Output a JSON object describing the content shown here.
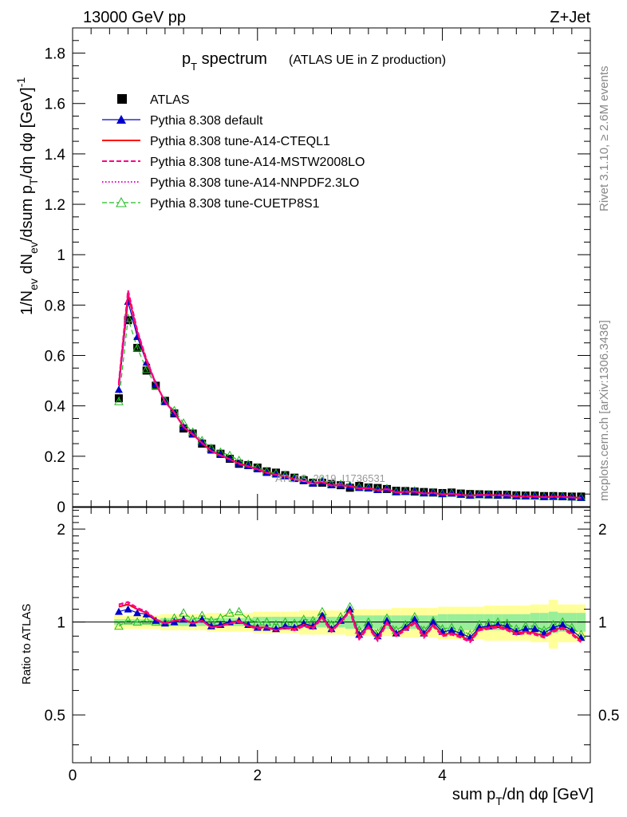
{
  "header": {
    "energy_label": "13000 GeV pp",
    "process_label": "Z+Jet"
  },
  "side_labels": {
    "rivet": "Rivet 3.1.10, ≥ 2.6M events",
    "mcplots": "mcplots.cern.ch [arXiv:1306.3436]"
  },
  "watermark": "ATLAS_2019_I1736531",
  "chart_data": {
    "type": "line",
    "title": "p_T spectrum",
    "title_main": "p",
    "title_sub": "T",
    "title_rest": " spectrum",
    "subtitle": "(ATLAS UE in Z production)",
    "xlabel": "sum p_T/dη dφ [GeV]",
    "ylabel": "1/N_ev dN_ev/dsum p_T/dη dφ [GeV]^-1",
    "ratio_ylabel": "Ratio to ATLAS",
    "xlim": [
      0,
      5.6
    ],
    "ylim": [
      0,
      1.9
    ],
    "ratio_ylim": [
      0.35,
      2.35
    ],
    "x_ticks": [
      "0",
      "2",
      "4"
    ],
    "y_ticks": [
      "0",
      "0.2",
      "0.4",
      "0.6",
      "0.8",
      "1",
      "1.2",
      "1.4",
      "1.6",
      "1.8"
    ],
    "ratio_ticks": [
      "0.5",
      "1",
      "2"
    ],
    "legend": [
      {
        "name": "ATLAS",
        "color": "#000000",
        "style": "data"
      },
      {
        "name": "Pythia 8.308 default",
        "color": "#0000cc",
        "style": "solid-triangle"
      },
      {
        "name": "Pythia 8.308 tune-A14-CTEQL1",
        "color": "#ff0000",
        "style": "solid"
      },
      {
        "name": "Pythia 8.308 tune-A14-MSTW2008LO",
        "color": "#ff0088",
        "style": "dashed"
      },
      {
        "name": "Pythia 8.308 tune-A14-NNPDF2.3LO",
        "color": "#ee00cc",
        "style": "dotted"
      },
      {
        "name": "Pythia 8.308 tune-CUETP8S1",
        "color": "#22bb22",
        "style": "dashed-open-triangle"
      }
    ],
    "x": [
      0.5,
      0.6,
      0.7,
      0.8,
      0.9,
      1.0,
      1.1,
      1.2,
      1.3,
      1.4,
      1.5,
      1.6,
      1.7,
      1.8,
      1.9,
      2.0,
      2.1,
      2.2,
      2.3,
      2.4,
      2.5,
      2.6,
      2.7,
      2.8,
      2.9,
      3.0,
      3.1,
      3.2,
      3.3,
      3.4,
      3.5,
      3.6,
      3.7,
      3.8,
      3.9,
      4.0,
      4.1,
      4.2,
      4.3,
      4.4,
      4.5,
      4.6,
      4.7,
      4.8,
      4.9,
      5.0,
      5.1,
      5.2,
      5.3,
      5.4,
      5.5
    ],
    "atlas": [
      0.43,
      0.74,
      0.63,
      0.54,
      0.48,
      0.42,
      0.37,
      0.31,
      0.29,
      0.25,
      0.23,
      0.21,
      0.19,
      0.17,
      0.165,
      0.155,
      0.14,
      0.135,
      0.125,
      0.115,
      0.105,
      0.095,
      0.095,
      0.09,
      0.085,
      0.075,
      0.082,
      0.076,
      0.074,
      0.07,
      0.063,
      0.062,
      0.06,
      0.058,
      0.056,
      0.054,
      0.056,
      0.052,
      0.05,
      0.049,
      0.048,
      0.047,
      0.047,
      0.045,
      0.044,
      0.044,
      0.042,
      0.042,
      0.041,
      0.04,
      0.04
    ],
    "ratio_default": [
      1.08,
      1.1,
      1.07,
      1.06,
      1.01,
      0.99,
      1.0,
      1.02,
      0.99,
      1.02,
      0.97,
      0.98,
      1.0,
      1.01,
      0.98,
      0.96,
      0.96,
      0.95,
      0.97,
      0.96,
      0.99,
      0.97,
      1.05,
      0.95,
      1.01,
      1.1,
      0.91,
      0.98,
      0.9,
      1.01,
      0.92,
      0.96,
      1.02,
      0.92,
      1.0,
      0.93,
      0.94,
      0.92,
      0.89,
      0.96,
      0.97,
      0.98,
      0.97,
      0.93,
      0.95,
      0.95,
      0.92,
      0.96,
      0.98,
      0.94,
      0.89
    ],
    "ratio_cteq": [
      1.12,
      1.14,
      1.1,
      1.07,
      1.02,
      0.99,
      1.01,
      1.02,
      0.99,
      1.01,
      0.96,
      0.97,
      0.99,
      1.01,
      0.97,
      0.96,
      0.96,
      0.94,
      0.96,
      0.95,
      0.98,
      0.96,
      1.04,
      0.94,
      1.0,
      1.09,
      0.89,
      0.97,
      0.88,
      1.0,
      0.91,
      0.95,
      1.0,
      0.9,
      0.98,
      0.91,
      0.92,
      0.9,
      0.87,
      0.95,
      0.96,
      0.97,
      0.95,
      0.92,
      0.93,
      0.92,
      0.9,
      0.94,
      0.96,
      0.92,
      0.87
    ],
    "ratio_mstw": [
      1.14,
      1.16,
      1.11,
      1.08,
      1.02,
      0.99,
      1.01,
      1.02,
      0.99,
      1.01,
      0.96,
      0.97,
      0.99,
      1.0,
      0.97,
      0.95,
      0.96,
      0.94,
      0.96,
      0.94,
      0.97,
      0.95,
      1.03,
      0.93,
      1.0,
      1.08,
      0.88,
      0.96,
      0.87,
      0.99,
      0.9,
      0.94,
      0.99,
      0.89,
      0.97,
      0.9,
      0.91,
      0.89,
      0.86,
      0.94,
      0.95,
      0.96,
      0.94,
      0.91,
      0.92,
      0.91,
      0.89,
      0.93,
      0.95,
      0.91,
      0.86
    ],
    "ratio_nnpdf": [
      1.13,
      1.15,
      1.1,
      1.07,
      1.02,
      0.99,
      1.01,
      1.02,
      0.99,
      1.01,
      0.96,
      0.97,
      0.99,
      1.01,
      0.97,
      0.96,
      0.96,
      0.94,
      0.96,
      0.95,
      0.98,
      0.96,
      1.04,
      0.94,
      1.0,
      1.09,
      0.89,
      0.97,
      0.88,
      1.0,
      0.91,
      0.95,
      1.0,
      0.9,
      0.98,
      0.91,
      0.92,
      0.9,
      0.87,
      0.95,
      0.96,
      0.97,
      0.95,
      0.92,
      0.93,
      0.92,
      0.9,
      0.94,
      0.96,
      0.92,
      0.87
    ],
    "ratio_cuetp": [
      0.97,
      1.01,
      1.0,
      1.01,
      1.0,
      1.0,
      1.03,
      1.07,
      1.02,
      1.05,
      1.01,
      1.03,
      1.07,
      1.08,
      1.02,
      1.0,
      1.0,
      0.98,
      1.0,
      0.99,
      1.02,
      1.01,
      1.08,
      0.98,
      1.04,
      1.12,
      0.94,
      1.0,
      0.92,
      1.03,
      0.94,
      0.98,
      1.04,
      0.94,
      1.01,
      0.95,
      0.96,
      0.94,
      0.91,
      0.98,
      0.99,
      1.0,
      0.99,
      0.95,
      0.97,
      0.97,
      0.94,
      0.98,
      1.0,
      0.96,
      0.91
    ],
    "band_outer": [
      0.05,
      0.05,
      0.05,
      0.05,
      0.05,
      0.06,
      0.06,
      0.06,
      0.06,
      0.06,
      0.07,
      0.07,
      0.07,
      0.07,
      0.07,
      0.08,
      0.08,
      0.08,
      0.08,
      0.08,
      0.09,
      0.09,
      0.09,
      0.09,
      0.09,
      0.1,
      0.1,
      0.1,
      0.1,
      0.1,
      0.11,
      0.11,
      0.11,
      0.11,
      0.11,
      0.12,
      0.12,
      0.12,
      0.12,
      0.12,
      0.13,
      0.13,
      0.13,
      0.13,
      0.13,
      0.14,
      0.14,
      0.18,
      0.14,
      0.14,
      0.14
    ],
    "band_inner": [
      0.02,
      0.02,
      0.02,
      0.02,
      0.02,
      0.03,
      0.03,
      0.03,
      0.03,
      0.03,
      0.03,
      0.03,
      0.03,
      0.03,
      0.03,
      0.04,
      0.04,
      0.04,
      0.04,
      0.04,
      0.04,
      0.04,
      0.04,
      0.04,
      0.04,
      0.05,
      0.05,
      0.05,
      0.05,
      0.05,
      0.05,
      0.05,
      0.05,
      0.05,
      0.05,
      0.06,
      0.06,
      0.06,
      0.06,
      0.06,
      0.06,
      0.06,
      0.06,
      0.06,
      0.06,
      0.07,
      0.07,
      0.08,
      0.07,
      0.07,
      0.07
    ]
  }
}
